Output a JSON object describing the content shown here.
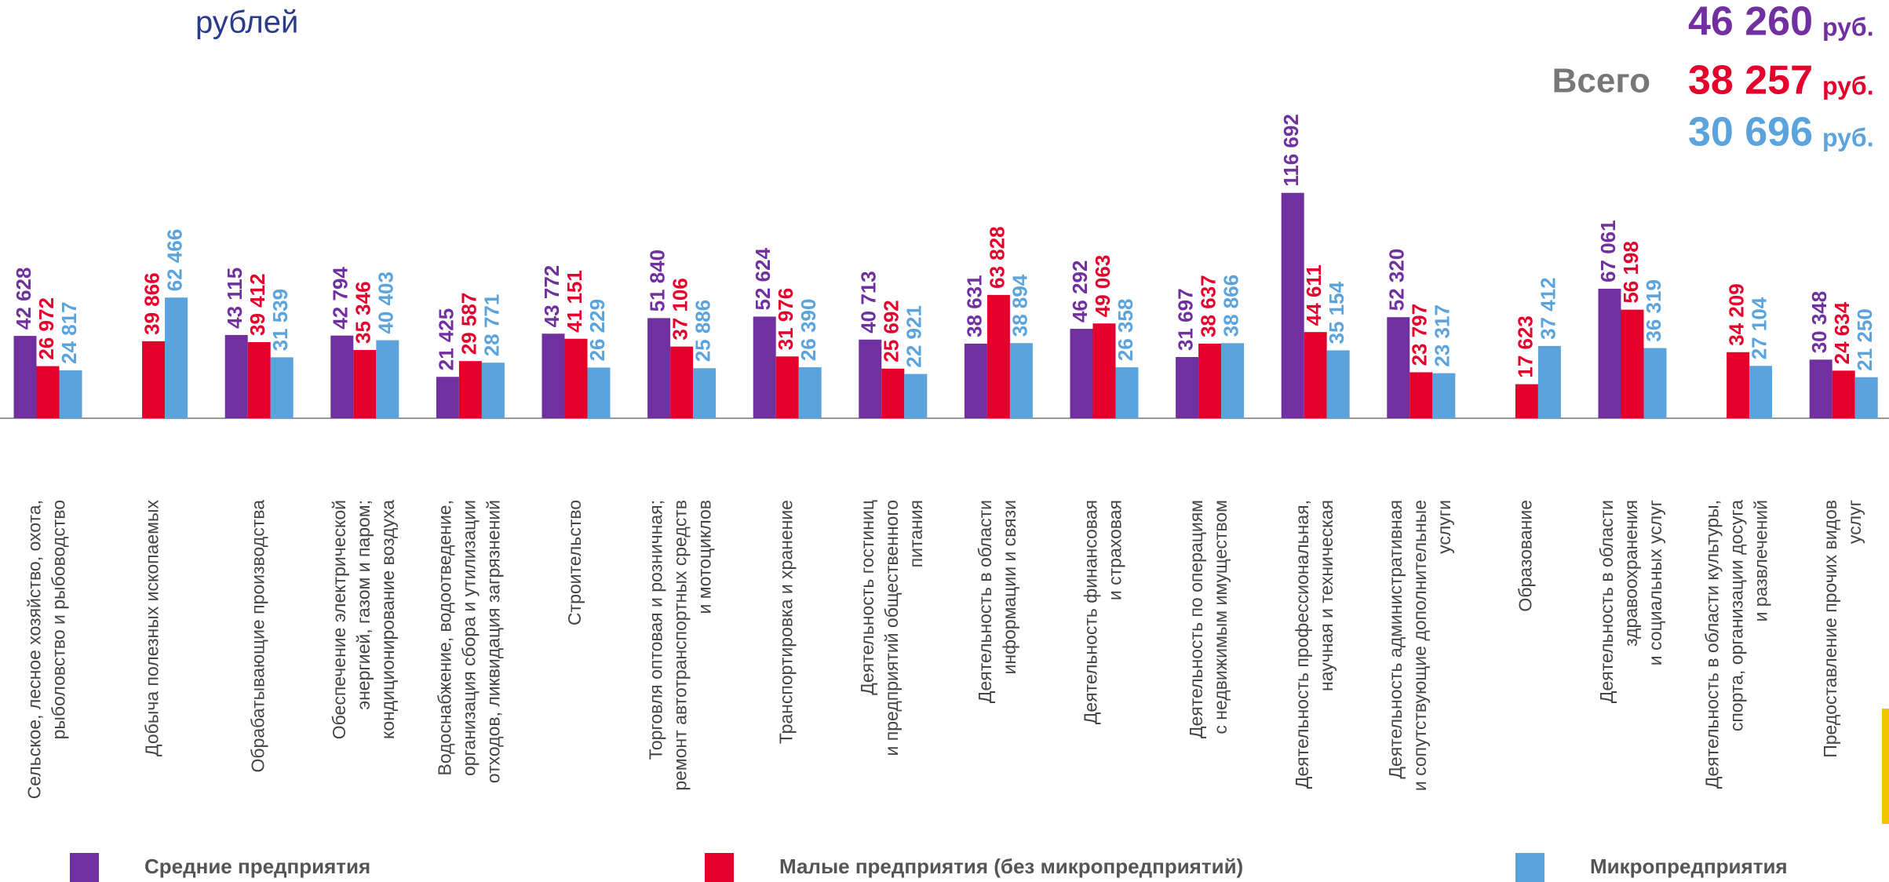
{
  "chart_data": {
    "type": "bar",
    "subtitle": "рублей",
    "categories": [
      [
        "Сельское, лесное хозяйство, охота,",
        "рыболовство и рыбоводство"
      ],
      [
        "Добыча полезных ископаемых"
      ],
      [
        "Обрабатывающие производства"
      ],
      [
        "Обеспечение электрической",
        "энергией, газом и паром;",
        "кондиционирование воздуха"
      ],
      [
        "Водоснабжение, водоотведение,",
        "организация сбора и утилизации",
        "отходов, ликвидация загрязнений"
      ],
      [
        "Строительство"
      ],
      [
        "Торговля оптовая и розничная;",
        "ремонт автотранспортных средств",
        "и мотоциклов"
      ],
      [
        "Транспортировка и хранение"
      ],
      [
        "Деятельность гостиниц",
        "и предприятий общественного",
        "питания"
      ],
      [
        "Деятельность в области",
        "информации и связи"
      ],
      [
        "Деятельность финансовая",
        "и страховая"
      ],
      [
        "Деятельность по операциям",
        "с недвижимым имуществом"
      ],
      [
        "Деятельность профессиональная,",
        "научная и техническая"
      ],
      [
        "Деятельность административная",
        "и сопутствующие дополнительные",
        "услуги"
      ],
      [
        "Образование"
      ],
      [
        "Деятельность в области",
        "здравоохранения",
        "и социальных услуг"
      ],
      [
        "Деятельность в области культуры,",
        "спорта, организации досуга",
        "и развлечений"
      ],
      [
        "Предоставление прочих видов",
        "услуг"
      ]
    ],
    "series": [
      {
        "name": "Средние предприятия",
        "color": "#7030a0",
        "values": [
          42628,
          null,
          43115,
          42794,
          21425,
          43772,
          51840,
          52624,
          40713,
          38631,
          46292,
          31697,
          116692,
          52320,
          null,
          67061,
          null,
          30348
        ],
        "value_labels": [
          "42 628",
          null,
          "43 115",
          "42 794",
          "21 425",
          "43 772",
          "51 840",
          "52 624",
          "40 713",
          "38 631",
          "46 292",
          "31 697",
          "116 692",
          "52 320",
          null,
          "67 061",
          null,
          "30 348"
        ]
      },
      {
        "name": "Малые предприятия (без микропредприятий)",
        "color": "#e4002b",
        "values": [
          26972,
          39866,
          39412,
          35346,
          29587,
          41151,
          37106,
          31976,
          25692,
          63828,
          49063,
          38637,
          44611,
          23797,
          17623,
          56198,
          34209,
          24634
        ],
        "value_labels": [
          "26 972",
          "39 866",
          "39 412",
          "35 346",
          "29 587",
          "41 151",
          "37 106",
          "31 976",
          "25 692",
          "63 828",
          "49 063",
          "38 637",
          "44 611",
          "23 797",
          "17 623",
          "56 198",
          "34 209",
          "24 634"
        ]
      },
      {
        "name": "Микропредприятия",
        "color": "#5aa3dc",
        "values": [
          24817,
          62466,
          31539,
          40403,
          28771,
          26229,
          25886,
          26390,
          22921,
          38894,
          26358,
          38866,
          35154,
          23317,
          37412,
          36319,
          27104,
          21250
        ],
        "value_labels": [
          "24 817",
          "62 466",
          "31 539",
          "40 403",
          "28 771",
          "26 229",
          "25 886",
          "26 390",
          "22 921",
          "38 894",
          "26 358",
          "38 866",
          "35 154",
          "23 317",
          "37 412",
          "36 319",
          "27 104",
          "21 250"
        ]
      }
    ],
    "ylim": [
      0,
      130000
    ],
    "totals": {
      "label": "Всего",
      "unit": "руб.",
      "values": [
        46260,
        38257,
        30696
      ],
      "value_labels": [
        "46 260",
        "38 257",
        "30 696"
      ]
    }
  }
}
